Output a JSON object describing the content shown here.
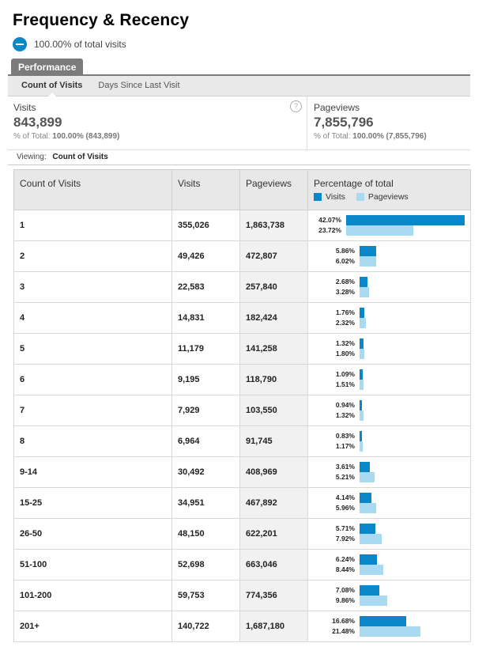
{
  "title": "Frequency & Recency",
  "segment": {
    "label": "100.00% of total visits",
    "icon": "segment-pie-icon",
    "color": "#0a87c8"
  },
  "tabs": {
    "performance": "Performance"
  },
  "subtabs": {
    "count_of_visits": "Count of Visits",
    "days_since_last_visit": "Days Since Last Visit"
  },
  "summary": {
    "visits": {
      "label": "Visits",
      "value": "843,899",
      "total_prefix": "% of Total:",
      "total_value": "100.00% (843,899)"
    },
    "pageviews": {
      "label": "Pageviews",
      "value": "7,855,796",
      "total_prefix": "% of Total:",
      "total_value": "100.00% (7,855,796)"
    },
    "help": "?"
  },
  "viewing": {
    "label": "Viewing:",
    "value": "Count of Visits"
  },
  "table": {
    "headers": {
      "count": "Count of Visits",
      "visits": "Visits",
      "pageviews": "Pageviews",
      "percentage": "Percentage of total"
    },
    "legend": {
      "visits": "Visits",
      "pageviews": "Pageviews",
      "visits_color": "#0a87c8",
      "pageviews_color": "#aadaf2"
    },
    "rows": [
      {
        "count": "1",
        "visits": "355,026",
        "pageviews": "1,863,738",
        "pct_visits": "42.07%",
        "pct_pageviews": "23.72%",
        "v": 42.07,
        "p": 23.72
      },
      {
        "count": "2",
        "visits": "49,426",
        "pageviews": "472,807",
        "pct_visits": "5.86%",
        "pct_pageviews": "6.02%",
        "v": 5.86,
        "p": 6.02
      },
      {
        "count": "3",
        "visits": "22,583",
        "pageviews": "257,840",
        "pct_visits": "2.68%",
        "pct_pageviews": "3.28%",
        "v": 2.68,
        "p": 3.28
      },
      {
        "count": "4",
        "visits": "14,831",
        "pageviews": "182,424",
        "pct_visits": "1.76%",
        "pct_pageviews": "2.32%",
        "v": 1.76,
        "p": 2.32
      },
      {
        "count": "5",
        "visits": "11,179",
        "pageviews": "141,258",
        "pct_visits": "1.32%",
        "pct_pageviews": "1.80%",
        "v": 1.32,
        "p": 1.8
      },
      {
        "count": "6",
        "visits": "9,195",
        "pageviews": "118,790",
        "pct_visits": "1.09%",
        "pct_pageviews": "1.51%",
        "v": 1.09,
        "p": 1.51
      },
      {
        "count": "7",
        "visits": "7,929",
        "pageviews": "103,550",
        "pct_visits": "0.94%",
        "pct_pageviews": "1.32%",
        "v": 0.94,
        "p": 1.32
      },
      {
        "count": "8",
        "visits": "6,964",
        "pageviews": "91,745",
        "pct_visits": "0.83%",
        "pct_pageviews": "1.17%",
        "v": 0.83,
        "p": 1.17
      },
      {
        "count": "9-14",
        "visits": "30,492",
        "pageviews": "408,969",
        "pct_visits": "3.61%",
        "pct_pageviews": "5.21%",
        "v": 3.61,
        "p": 5.21
      },
      {
        "count": "15-25",
        "visits": "34,951",
        "pageviews": "467,892",
        "pct_visits": "4.14%",
        "pct_pageviews": "5.96%",
        "v": 4.14,
        "p": 5.96
      },
      {
        "count": "26-50",
        "visits": "48,150",
        "pageviews": "622,201",
        "pct_visits": "5.71%",
        "pct_pageviews": "7.92%",
        "v": 5.71,
        "p": 7.92
      },
      {
        "count": "51-100",
        "visits": "52,698",
        "pageviews": "663,046",
        "pct_visits": "6.24%",
        "pct_pageviews": "8.44%",
        "v": 6.24,
        "p": 8.44
      },
      {
        "count": "101-200",
        "visits": "59,753",
        "pageviews": "774,356",
        "pct_visits": "7.08%",
        "pct_pageviews": "9.86%",
        "v": 7.08,
        "p": 9.86
      },
      {
        "count": "201+",
        "visits": "140,722",
        "pageviews": "1,687,180",
        "pct_visits": "16.68%",
        "pct_pageviews": "21.48%",
        "v": 16.68,
        "p": 21.48
      }
    ]
  }
}
